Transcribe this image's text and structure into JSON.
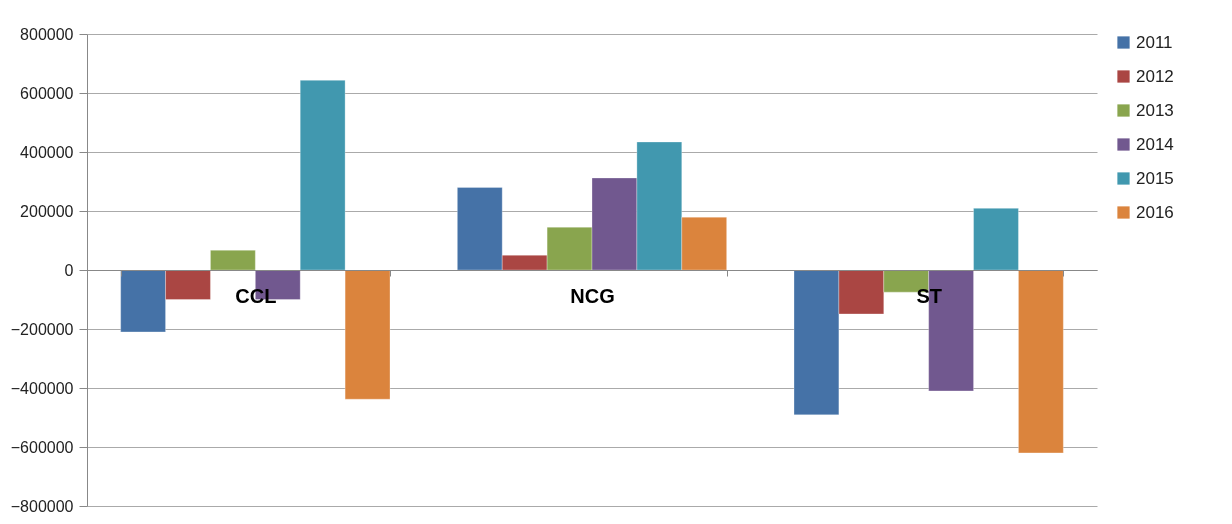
{
  "chart_data": {
    "type": "bar",
    "categories": [
      "CCL",
      "NCG",
      "ST"
    ],
    "series": [
      {
        "name": "2011",
        "color": "#4572a7",
        "values": [
          -210000,
          280000,
          -491000
        ]
      },
      {
        "name": "2012",
        "color": "#aa4643",
        "values": [
          -100000,
          50000,
          -149000
        ]
      },
      {
        "name": "2013",
        "color": "#89a54e",
        "values": [
          67000,
          145000,
          -75000
        ]
      },
      {
        "name": "2014",
        "color": "#71588f",
        "values": [
          -100000,
          312000,
          -410000
        ]
      },
      {
        "name": "2015",
        "color": "#4198af",
        "values": [
          643000,
          434000,
          209000
        ]
      },
      {
        "name": "2016",
        "color": "#db843d",
        "values": [
          -438000,
          179000,
          -620000
        ]
      }
    ],
    "ylim": [
      -800000,
      800000
    ],
    "yticks": [
      -800000,
      -600000,
      -400000,
      -200000,
      0,
      200000,
      400000,
      600000,
      800000
    ],
    "grid": "y",
    "legend": "right"
  }
}
